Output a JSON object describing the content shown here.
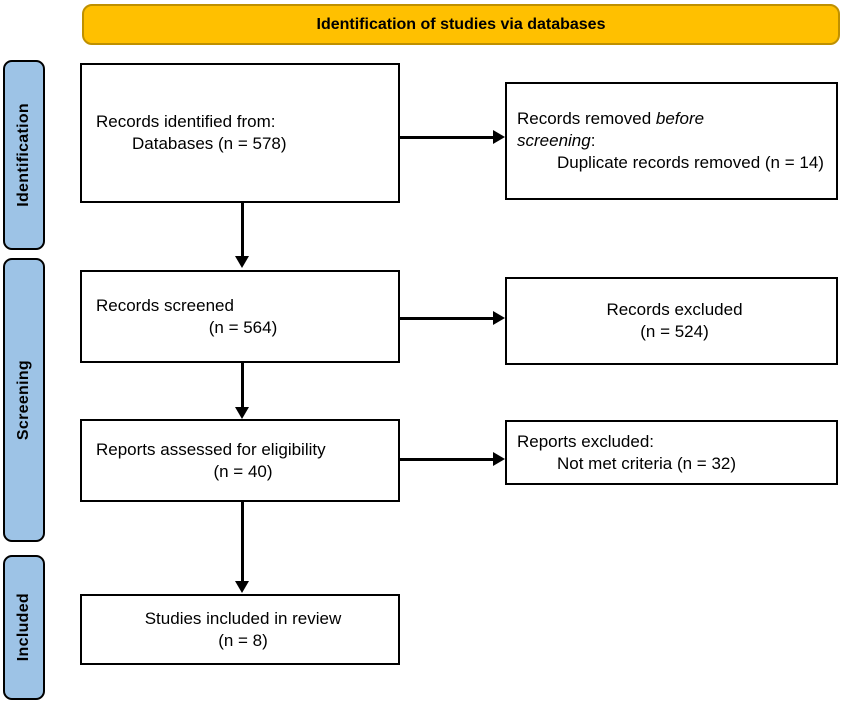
{
  "banner": {
    "label": "Identification of studies via databases"
  },
  "sidebar": {
    "items": [
      {
        "label": "Identification"
      },
      {
        "label": "Screening"
      },
      {
        "label": "Included"
      }
    ]
  },
  "boxes": {
    "records_identified": {
      "line1": "Records identified from:",
      "line2": "Databases (n = 578)"
    },
    "records_removed": {
      "pre": "Records removed ",
      "italic1": "before",
      "italic2": "screening",
      "colon": ":",
      "detail": "Duplicate records removed (n = 14)"
    },
    "records_screened": {
      "line1": "Records screened",
      "line2": "(n = 564)"
    },
    "records_excluded": {
      "line1": "Records excluded",
      "line2": "(n = 524)"
    },
    "reports_assessed": {
      "line1": "Reports assessed for eligibility",
      "line2": "(n = 40)"
    },
    "reports_excluded": {
      "line1": "Reports excluded:",
      "line2": "Not met criteria (n = 32)"
    },
    "studies_included": {
      "line1": "Studies included in review",
      "line2": "(n = 8)"
    }
  },
  "colors": {
    "banner_fill": "#FFC000",
    "banner_border": "#BF9000",
    "sidebar_fill": "#9DC3E6",
    "line_color": "#000000"
  }
}
